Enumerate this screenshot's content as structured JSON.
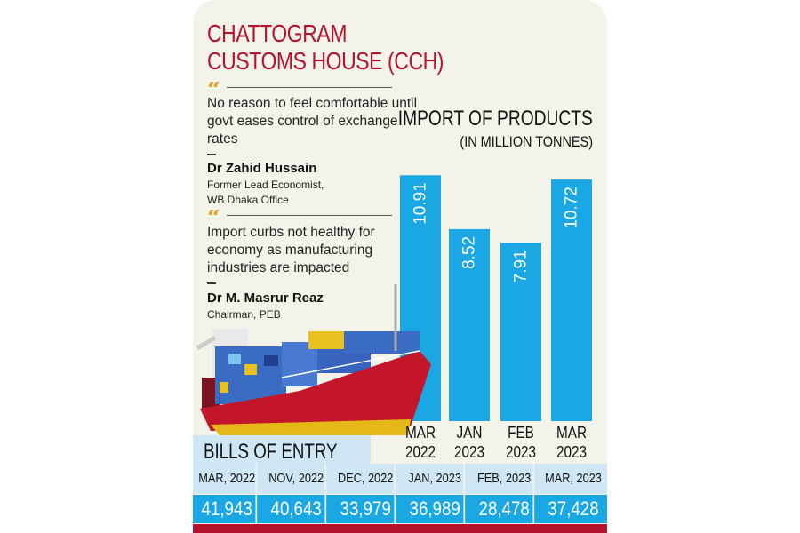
{
  "header": {
    "title_line1": "CHATTOGRAM",
    "title_line2": "CUSTOMS HOUSE (CCH)"
  },
  "quotes": [
    {
      "text": "No reason to feel comfortable until govt eases control of exchange rates",
      "name": "Dr Zahid Hussain",
      "role_line1": "Former Lead Economist,",
      "role_line2": "WB Dhaka Office"
    },
    {
      "text": "Import curbs not healthy for economy as manufacturing industries are impacted",
      "name": "Dr M. Masrur Reaz",
      "role_line1": "Chairman, PEB"
    }
  ],
  "colors": {
    "bar": "#1aa7e4",
    "title": "#b5122e",
    "accent": "#e8a21e",
    "table_header": "#cfe6f5",
    "background": "#f3f3ea"
  },
  "chart_data": {
    "type": "bar",
    "title": "IMPORT OF PRODUCTS",
    "subtitle": "(IN MILLION TONNES)",
    "categories": [
      [
        "MAR",
        "2022"
      ],
      [
        "JAN",
        "2023"
      ],
      [
        "FEB",
        "2023"
      ],
      [
        "MAR",
        "2023"
      ]
    ],
    "values": [
      10.91,
      8.52,
      7.91,
      10.72
    ],
    "data_labels": [
      "10.91",
      "8.52",
      "7.91",
      "10.72"
    ],
    "grid": false
  },
  "bills": {
    "title": "BILLS OF ENTRY",
    "months": [
      "MAR, 2022",
      "NOV, 2022",
      "DEC, 2022",
      "JAN, 2023",
      "FEB, 2023",
      "MAR, 2023"
    ],
    "values": [
      "41,943",
      "40,643",
      "33,979",
      "36,989",
      "28,478",
      "37,428"
    ]
  },
  "illustration": "container-ship"
}
